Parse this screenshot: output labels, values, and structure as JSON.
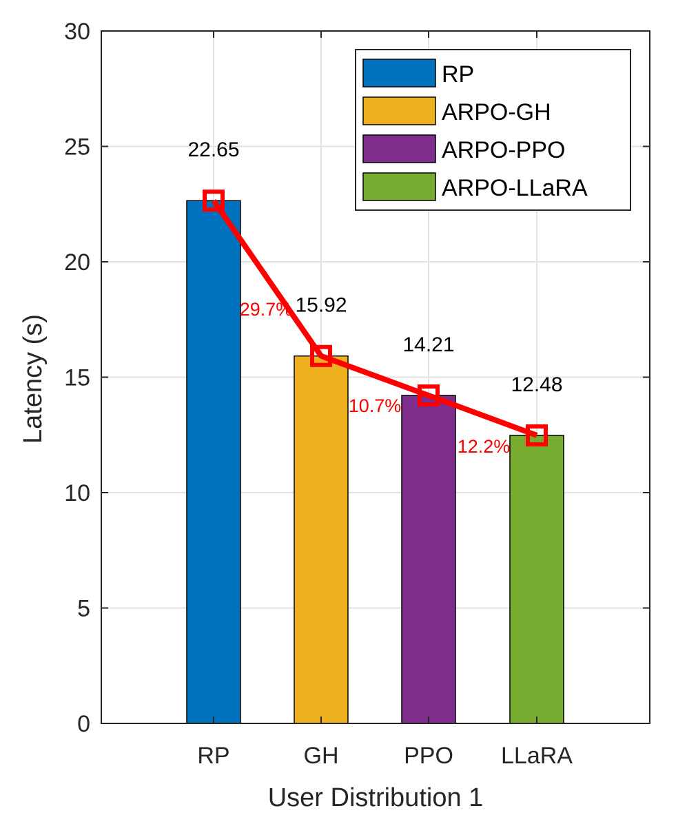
{
  "chart_data": {
    "type": "bar",
    "categories": [
      "RP",
      "GH",
      "PPO",
      "LLaRA"
    ],
    "values": [
      22.65,
      15.92,
      14.21,
      12.48
    ],
    "value_labels": [
      "22.65",
      "15.92",
      "14.21",
      "12.48"
    ],
    "colors": [
      "#0072BD",
      "#EDB120",
      "#7E2F8E",
      "#77AC30"
    ],
    "line_color": "#FF0000",
    "xlabel": "User Distribution 1",
    "ylabel": "Latency (s)",
    "ylim": [
      0,
      30
    ],
    "yticks": [
      0,
      5,
      10,
      15,
      20,
      25,
      30
    ],
    "ytick_labels": [
      "0",
      "5",
      "10",
      "15",
      "20",
      "25",
      "30"
    ],
    "grid": true,
    "legend": {
      "position": "top-right",
      "entries": [
        "RP",
        "ARPO-GH",
        "ARPO-PPO",
        "ARPO-LLaRA"
      ]
    },
    "overlay_line": {
      "values": [
        22.65,
        15.92,
        14.21,
        12.48
      ],
      "marker": "square"
    },
    "reductions": [
      {
        "between": [
          "RP",
          "GH"
        ],
        "label": "29.7%"
      },
      {
        "between": [
          "GH",
          "PPO"
        ],
        "label": "10.7%"
      },
      {
        "between": [
          "PPO",
          "LLaRA"
        ],
        "label": "12.2%"
      }
    ]
  }
}
